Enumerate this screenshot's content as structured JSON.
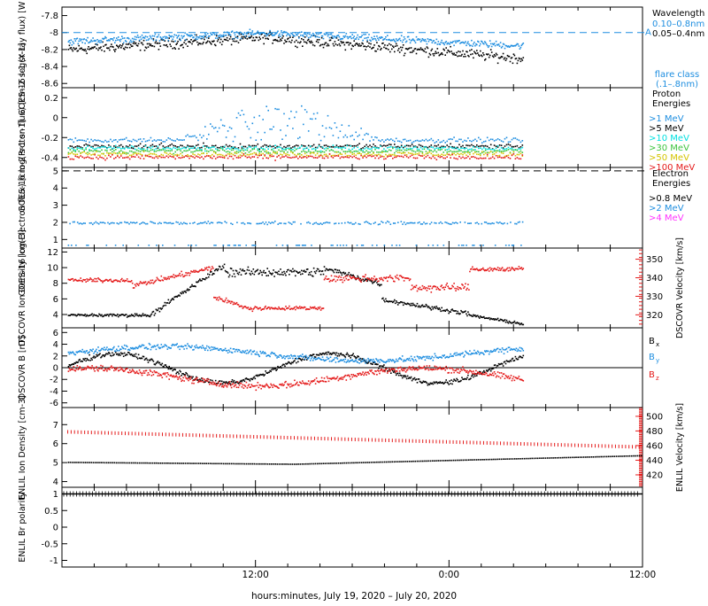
{
  "colors": {
    "black": "#000000",
    "blue": "#1e8ee0",
    "cyan": "#00e0e0",
    "green": "#3ec43e",
    "yellow": "#d4c400",
    "orange": "#ff8c1a",
    "red": "#e41a1a",
    "magenta": "#ff33ff"
  },
  "x_axis": {
    "label": "hours:minutes, July 19, 2020 – July 20, 2020",
    "ticks": [
      "12:00",
      "0:00",
      "12:00"
    ]
  },
  "chart_data": [
    {
      "panel": "xray",
      "type": "scatter",
      "ylabel": "GOES-16 log(X-ray flux) [W m-2]",
      "yticks": [
        -7.8,
        -8.0,
        -8.2,
        -8.4,
        -8.6
      ],
      "ylim": [
        -8.65,
        -7.7
      ],
      "reference_line": {
        "y": -8.0,
        "label": "A"
      },
      "legend_title": "Wavelength",
      "series": [
        {
          "name": "0.10–0.8nm",
          "color": "blue",
          "level_start": -8.1,
          "level_mid": -8.0,
          "level_end": -8.15
        },
        {
          "name": "0.05–0.4nm",
          "color": "black",
          "level_start": -8.2,
          "level_mid": -8.05,
          "level_end": -8.3
        }
      ],
      "note": "flare class (.1–.8nm)"
    },
    {
      "panel": "proton",
      "type": "scatter",
      "ylabel": "GOES-16 log(Proton flux) [cm-2 s-1 sr-1]",
      "yticks": [
        0.2,
        0.0,
        -0.2,
        -0.4
      ],
      "ylim": [
        -0.5,
        0.3
      ],
      "legend_title": "Proton Energies",
      "series": [
        {
          "name": ">1 MeV",
          "color": "blue",
          "level": -0.22
        },
        {
          "name": ">5 MeV",
          "color": "black",
          "level": -0.28
        },
        {
          "name": ">10 MeV",
          "color": "cyan",
          "level": -0.3
        },
        {
          "name": ">30 MeV",
          "color": "green",
          "level": -0.33
        },
        {
          "name": ">50 MeV",
          "color": "yellow",
          "level": -0.36
        },
        {
          "name": ">100 MeV",
          "color": "red",
          "level": -0.39
        }
      ]
    },
    {
      "panel": "electron",
      "type": "scatter",
      "ylabel": "GOES-16 log(Electron flux) [cm-2 s-1 sr-1]",
      "yticks": [
        5,
        4,
        3,
        2,
        1
      ],
      "ylim": [
        0.5,
        5.2
      ],
      "reference_line": {
        "y": 5
      },
      "legend_title": "Electron Energies",
      "series": [
        {
          "name": ">0.8 MeV",
          "color": "black",
          "level": null
        },
        {
          "name": ">2 MeV",
          "color": "blue",
          "level": 2.0
        },
        {
          "name": ">4 MeV",
          "color": "magenta",
          "level": null
        }
      ]
    },
    {
      "panel": "dscovr_plasma",
      "type": "scatter",
      "ylabel": "DSCOVR Ion Density [cm-3]",
      "yticks": [
        12,
        10,
        8,
        6,
        4
      ],
      "ylim": [
        2.3,
        12.5
      ],
      "y2label": "DSCOVR Velocity [km/s]",
      "y2ticks": [
        350,
        340,
        330,
        320
      ],
      "y2lim": [
        313,
        356
      ],
      "series": [
        {
          "name": "Ion Density",
          "color": "black",
          "axis": "left"
        },
        {
          "name": "Velocity",
          "color": "red",
          "axis": "right"
        }
      ]
    },
    {
      "panel": "dscovr_b",
      "type": "scatter",
      "ylabel": "DSCOVR B [nT]",
      "yticks": [
        6,
        4,
        2,
        0,
        -2,
        -4,
        -6
      ],
      "ylim": [
        -6.8,
        6.8
      ],
      "zero_line": true,
      "series": [
        {
          "name": "Bx",
          "color": "black"
        },
        {
          "name": "By",
          "color": "blue"
        },
        {
          "name": "Bz",
          "color": "red"
        }
      ]
    },
    {
      "panel": "enlil_plasma",
      "type": "line",
      "ylabel": "ENLIL Ion Density [cm-3]",
      "yticks": [
        7,
        6,
        5,
        4
      ],
      "ylim": [
        3.7,
        7.9
      ],
      "y2label": "ENLIL Velocity [km/s]",
      "y2ticks": [
        500,
        480,
        460,
        440,
        420
      ],
      "y2lim": [
        403,
        512
      ],
      "series": [
        {
          "name": "Ion Density",
          "color": "black",
          "axis": "left",
          "x": [
            0,
            0.4,
            1.0
          ],
          "y": [
            5.05,
            4.95,
            5.4
          ]
        },
        {
          "name": "Velocity",
          "color": "red",
          "axis": "right",
          "x": [
            0,
            1.0
          ],
          "y": [
            479,
            458
          ]
        }
      ]
    },
    {
      "panel": "enlil_polarity",
      "type": "line",
      "ylabel": "ENLIL Br polarity",
      "yticks": [
        1.0,
        0.5,
        0.0,
        -0.5,
        -1.0
      ],
      "ylim": [
        -1.2,
        1.2
      ],
      "series": [
        {
          "name": "Br polarity",
          "color": "black",
          "x": [
            0,
            1.0
          ],
          "y": [
            1.0,
            1.0
          ]
        }
      ]
    }
  ]
}
